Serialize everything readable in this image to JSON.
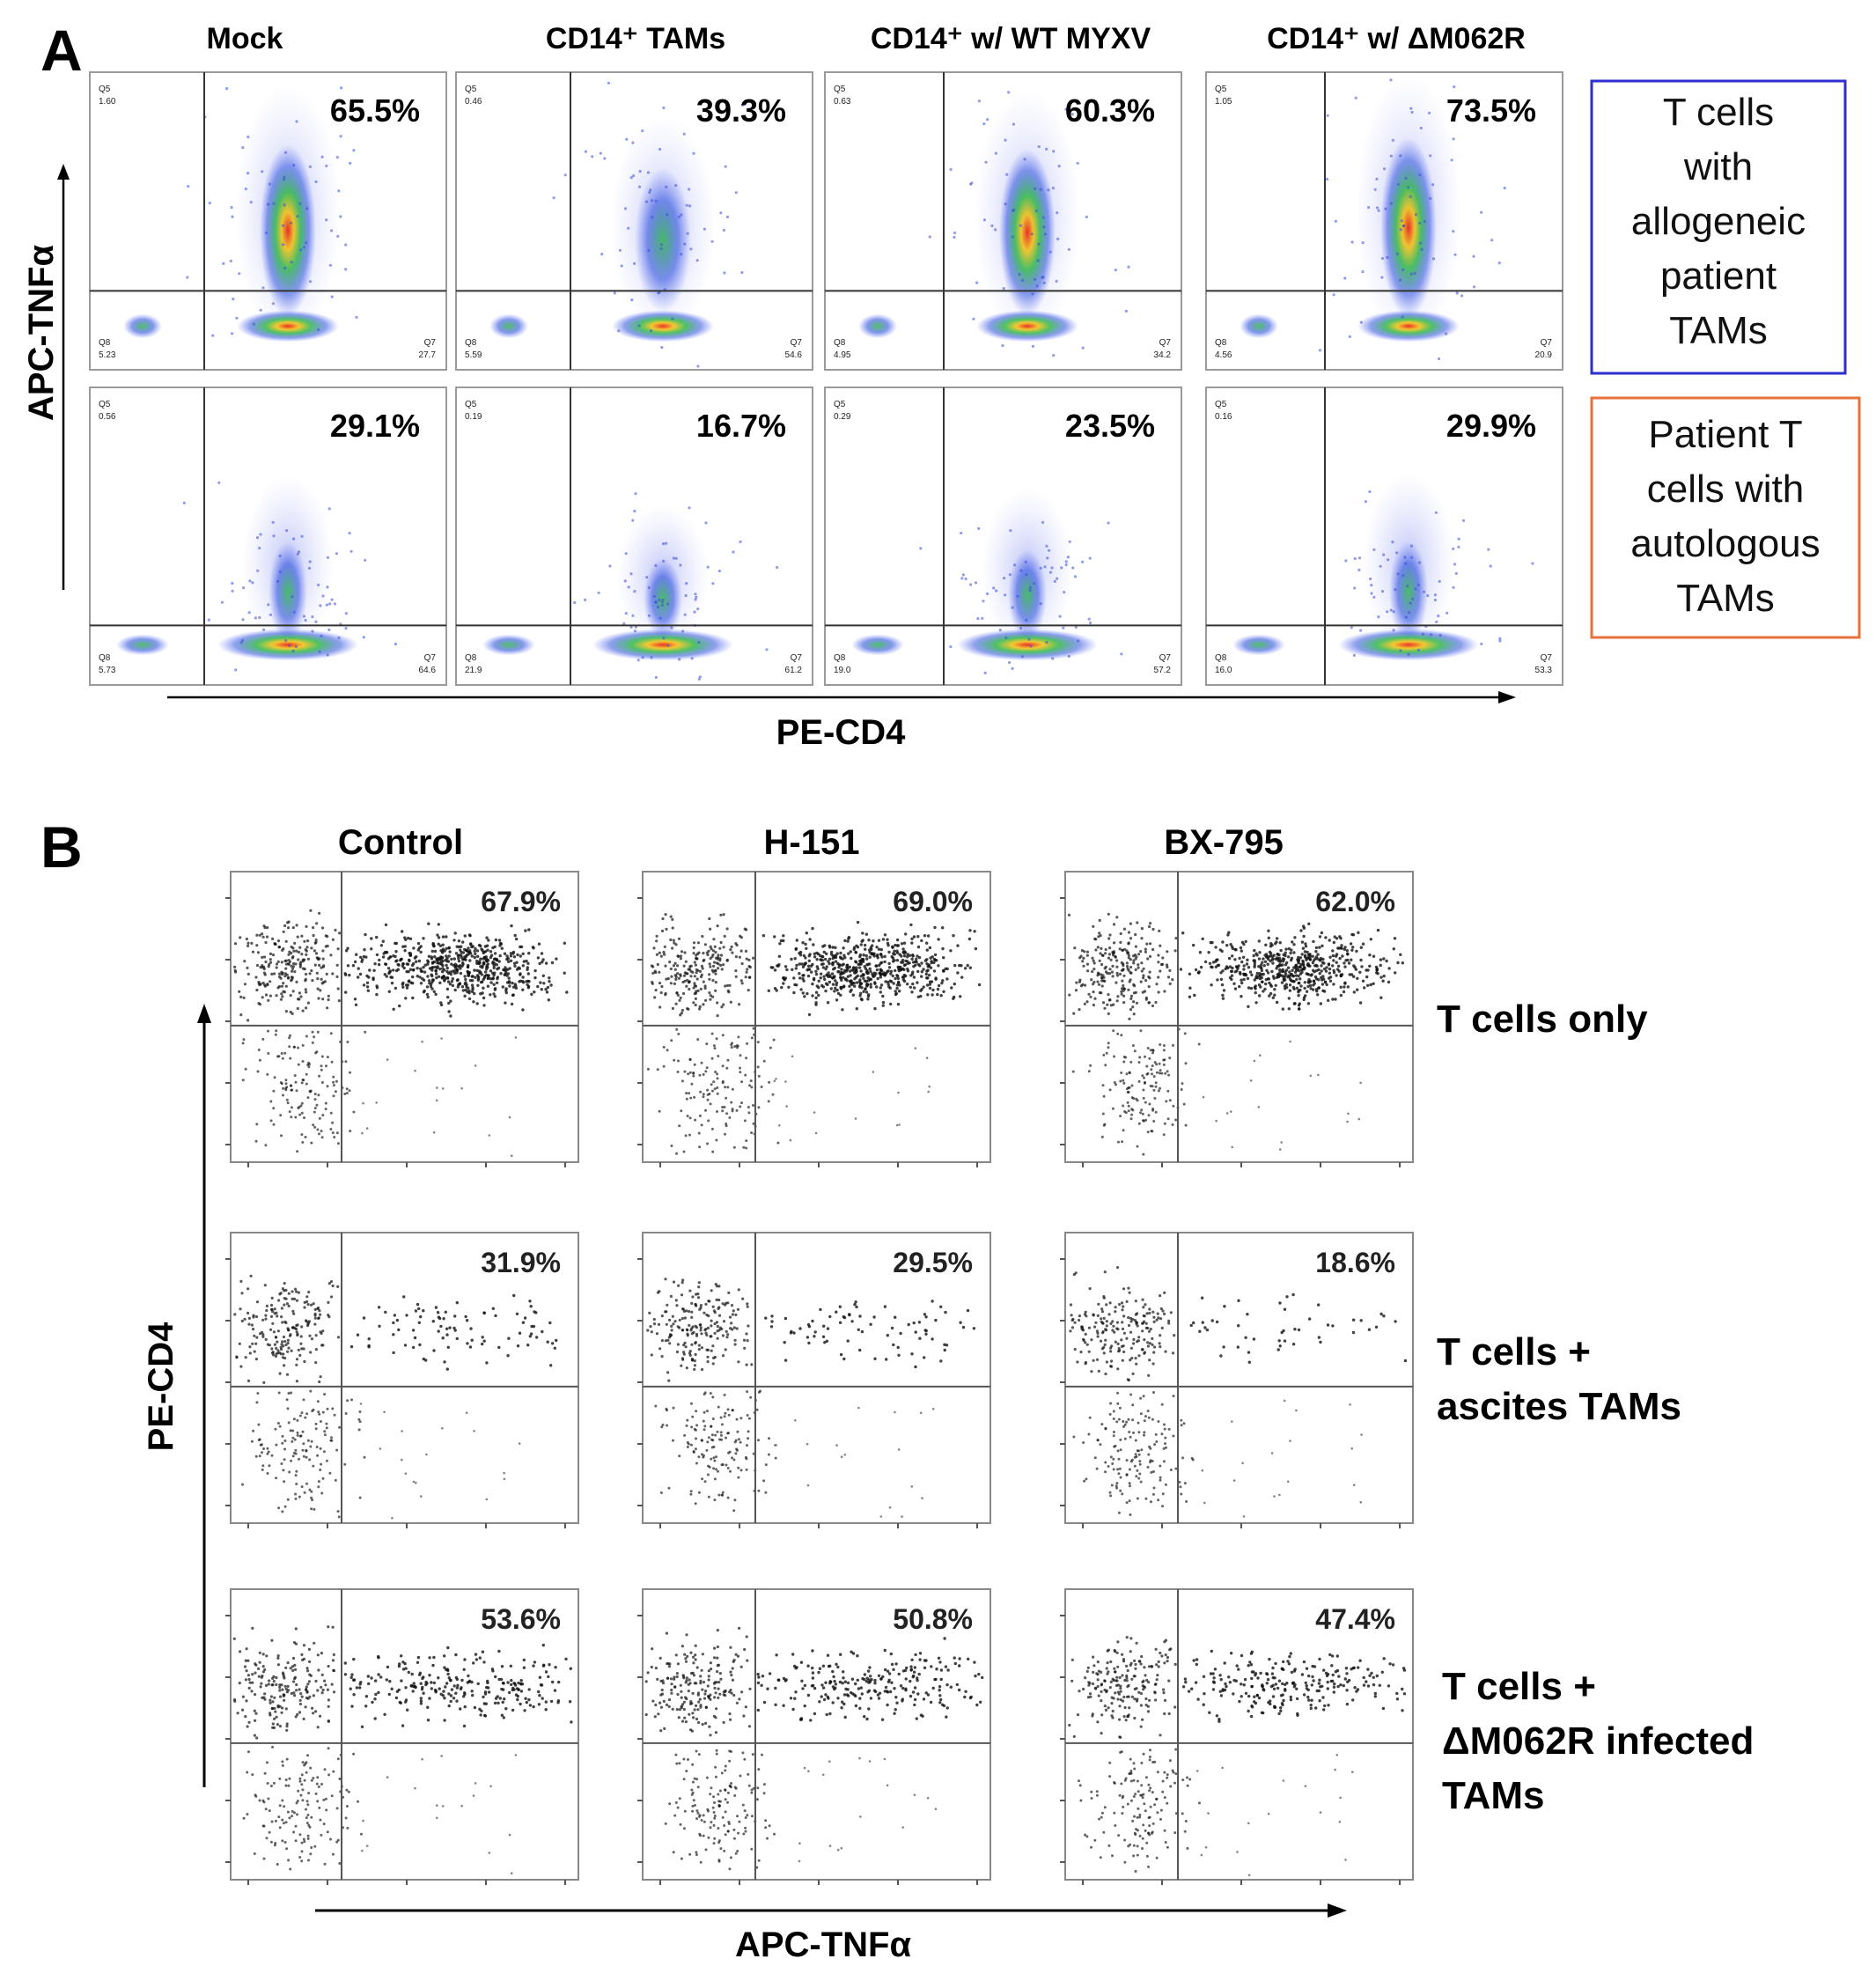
{
  "panel_a": {
    "letter": "A",
    "columns": [
      "Mock",
      "CD14⁺ TAMs",
      "CD14⁺ w/ WT MYXV",
      "CD14⁺ w/ ΔM062R"
    ],
    "y_axis_label": "APC-TNFα",
    "x_axis_label": "PE-CD4",
    "row_labels": [
      {
        "lines": [
          "T cells",
          "with",
          "allogeneic",
          "patient",
          "TAMs"
        ],
        "color": "#2f2fd0"
      },
      {
        "lines": [
          "Patient T",
          "cells with",
          "autologous",
          "TAMs"
        ],
        "color": "#e8703a"
      }
    ],
    "gate_labels": {
      "q5": "Q5",
      "q7": "Q7",
      "q8": "Q8"
    },
    "rows": [
      {
        "percents": [
          "65.5%",
          "39.3%",
          "60.3%",
          "73.5%"
        ],
        "q5": [
          "1.60",
          "0.46",
          "0.63",
          "1.05"
        ],
        "q8": [
          "5.23",
          "5.59",
          "4.95",
          "4.56"
        ],
        "q7": [
          "27.7",
          "54.6",
          "34.2",
          "20.9"
        ]
      },
      {
        "percents": [
          "29.1%",
          "16.7%",
          "23.5%",
          "29.9%"
        ],
        "q5": [
          "0.56",
          "0.19",
          "0.29",
          "0.16"
        ],
        "q8": [
          "5.73",
          "21.9",
          "19.0",
          "16.0"
        ],
        "q7": [
          "64.6",
          "61.2",
          "57.2",
          "53.3"
        ]
      }
    ]
  },
  "panel_b": {
    "letter": "B",
    "columns": [
      "Control",
      "H-151",
      "BX-795"
    ],
    "y_axis_label": "PE-CD4",
    "x_axis_label": "APC-TNFα",
    "row_labels": [
      [
        "T cells only"
      ],
      [
        "T cells +",
        "ascites TAMs"
      ],
      [
        "T cells +",
        "ΔM062R infected",
        "TAMs"
      ]
    ],
    "percents": [
      [
        "67.9%",
        "69.0%",
        "62.0%"
      ],
      [
        "31.9%",
        "29.5%",
        "18.6%"
      ],
      [
        "53.6%",
        "50.8%",
        "47.4%"
      ]
    ]
  },
  "chart_data": [
    {
      "type": "scatter",
      "title": "A",
      "xlabel": "PE-CD4",
      "ylabel": "APC-TNFα",
      "columns": [
        "Mock",
        "CD14⁺ TAMs",
        "CD14⁺ w/ WT MYXV",
        "CD14⁺ w/ ΔM062R"
      ],
      "rows": [
        "T cells with allogeneic patient TAMs",
        "Patient T cells with autologous TAMs"
      ],
      "upper_right_percent": [
        [
          65.5,
          39.3,
          60.3,
          73.5
        ],
        [
          29.1,
          16.7,
          23.5,
          29.9
        ]
      ],
      "colormap": "density (blue to green to yellow to red)"
    },
    {
      "type": "scatter",
      "title": "B",
      "xlabel": "APC-TNFα",
      "ylabel": "PE-CD4",
      "columns": [
        "Control",
        "H-151",
        "BX-795"
      ],
      "rows": [
        "T cells only",
        "T cells + ascites TAMs",
        "T cells + ΔM062R infected TAMs"
      ],
      "upper_right_percent": [
        [
          67.9,
          69.0,
          62.0
        ],
        [
          31.9,
          29.5,
          18.6
        ],
        [
          53.6,
          50.8,
          47.4
        ]
      ],
      "colormap": "black dots"
    }
  ]
}
